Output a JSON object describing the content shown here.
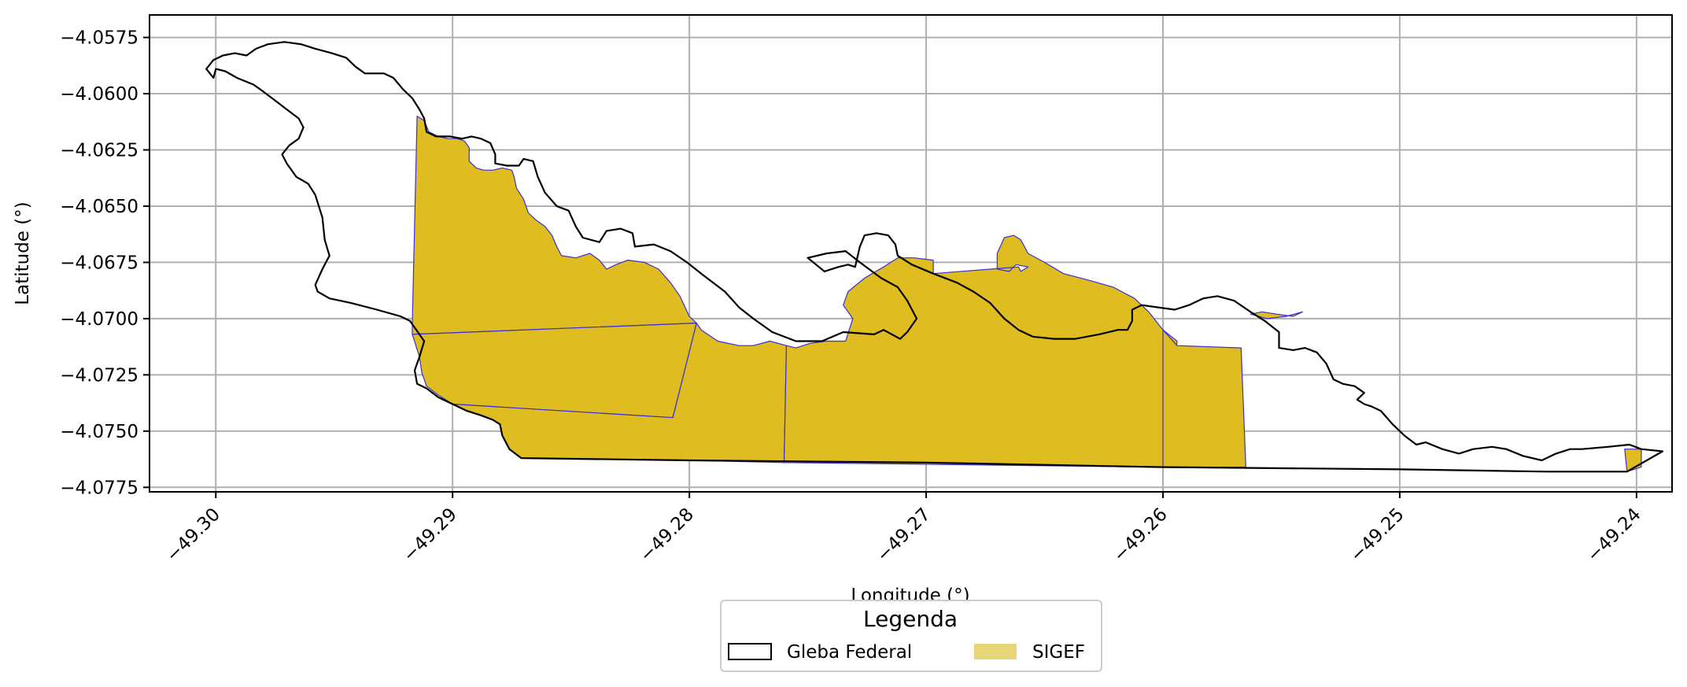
{
  "chart_data": {
    "type": "map",
    "xlabel": "Longitude (°)",
    "ylabel": "Latitude (°)",
    "xlim": [
      -49.3028,
      -49.2385
    ],
    "ylim": [
      -4.0777,
      -4.0565
    ],
    "xticks": [
      -49.3,
      -49.29,
      -49.28,
      -49.27,
      -49.26,
      -49.25,
      -49.24
    ],
    "xtick_labels": [
      "−49.30",
      "−49.29",
      "−49.28",
      "−49.27",
      "−49.26",
      "−49.25",
      "−49.24"
    ],
    "yticks": [
      -4.0575,
      -4.06,
      -4.0625,
      -4.065,
      -4.0675,
      -4.07,
      -4.0725,
      -4.075,
      -4.0775
    ],
    "ytick_labels": [
      "−4.0575",
      "−4.0600",
      "−4.0625",
      "−4.0650",
      "−4.0675",
      "−4.0700",
      "−4.0725",
      "−4.0750",
      "−4.0775"
    ],
    "grid": true,
    "legend": {
      "title": "Legenda",
      "placement": "bottom-center",
      "entries": [
        {
          "name": "Gleba Federal",
          "fill": "#ffffff",
          "edge": "#000000"
        },
        {
          "name": "SIGEF",
          "fill": "#ddb81f",
          "edge": "#4a3aa8"
        }
      ]
    },
    "colors": {
      "sigef_fill": "#dfbd21",
      "sigef_edge": "#3b2fd0",
      "gleba_edge": "#000000",
      "grid": "#b0b0b0"
    },
    "gleba_federal": [
      [
        -49.3004,
        -4.0589
      ],
      [
        -49.3001,
        -4.0585
      ],
      [
        -49.2997,
        -4.0583
      ],
      [
        -49.2992,
        -4.0582
      ],
      [
        -49.2987,
        -4.0583
      ],
      [
        -49.2983,
        -4.058
      ],
      [
        -49.2978,
        -4.0578
      ],
      [
        -49.2971,
        -4.0577
      ],
      [
        -49.2964,
        -4.0578
      ],
      [
        -49.2958,
        -4.058
      ],
      [
        -49.2951,
        -4.0582
      ],
      [
        -49.2945,
        -4.0584
      ],
      [
        -49.2941,
        -4.0588
      ],
      [
        -49.2937,
        -4.0591
      ],
      [
        -49.2929,
        -4.0591
      ],
      [
        -49.2925,
        -4.0593
      ],
      [
        -49.2921,
        -4.0598
      ],
      [
        -49.2917,
        -4.0602
      ],
      [
        -49.2914,
        -4.0607
      ],
      [
        -49.2912,
        -4.0611
      ],
      [
        -49.2911,
        -4.0617
      ],
      [
        -49.2907,
        -4.0619
      ],
      [
        -49.2901,
        -4.0619
      ],
      [
        -49.2896,
        -4.062
      ],
      [
        -49.2892,
        -4.0619
      ],
      [
        -49.2888,
        -4.062
      ],
      [
        -49.2884,
        -4.0622
      ],
      [
        -49.2882,
        -4.0627
      ],
      [
        -49.2882,
        -4.0631
      ],
      [
        -49.2877,
        -4.0632
      ],
      [
        -49.2872,
        -4.0632
      ],
      [
        -49.287,
        -4.0629
      ],
      [
        -49.2866,
        -4.063
      ],
      [
        -49.2864,
        -4.0637
      ],
      [
        -49.2861,
        -4.0644
      ],
      [
        -49.2856,
        -4.065
      ],
      [
        -49.2851,
        -4.0652
      ],
      [
        -49.2848,
        -4.0659
      ],
      [
        -49.2845,
        -4.0664
      ],
      [
        -49.2838,
        -4.0666
      ],
      [
        -49.2835,
        -4.0661
      ],
      [
        -49.2829,
        -4.066
      ],
      [
        -49.2824,
        -4.0662
      ],
      [
        -49.2823,
        -4.0668
      ],
      [
        -49.2815,
        -4.0667
      ],
      [
        -49.2808,
        -4.067
      ],
      [
        -49.2801,
        -4.0675
      ],
      [
        -49.2795,
        -4.068
      ],
      [
        -49.2785,
        -4.0688
      ],
      [
        -49.2779,
        -4.0695
      ],
      [
        -49.2773,
        -4.07
      ],
      [
        -49.2765,
        -4.0706
      ],
      [
        -49.2755,
        -4.071
      ],
      [
        -49.2744,
        -4.071
      ],
      [
        -49.2735,
        -4.0706
      ],
      [
        -49.2722,
        -4.0707
      ],
      [
        -49.2718,
        -4.0705
      ],
      [
        -49.2711,
        -4.0709
      ],
      [
        -49.2708,
        -4.0706
      ],
      [
        -49.2704,
        -4.07
      ],
      [
        -49.2708,
        -4.0692
      ],
      [
        -49.2712,
        -4.0686
      ],
      [
        -49.2719,
        -4.0682
      ],
      [
        -49.2728,
        -4.0675
      ],
      [
        -49.2734,
        -4.067
      ],
      [
        -49.2742,
        -4.0671
      ],
      [
        -49.275,
        -4.0673
      ],
      [
        -49.2743,
        -4.0679
      ],
      [
        -49.2737,
        -4.0677
      ],
      [
        -49.2733,
        -4.0676
      ],
      [
        -49.273,
        -4.0677
      ],
      [
        -49.2728,
        -4.0668
      ],
      [
        -49.2726,
        -4.0663
      ],
      [
        -49.2721,
        -4.0662
      ],
      [
        -49.2716,
        -4.0663
      ],
      [
        -49.2713,
        -4.0667
      ],
      [
        -49.2712,
        -4.0672
      ],
      [
        -49.2706,
        -4.0676
      ],
      [
        -49.2697,
        -4.068
      ],
      [
        -49.2687,
        -4.0684
      ],
      [
        -49.268,
        -4.0688
      ],
      [
        -49.2673,
        -4.0693
      ],
      [
        -49.2667,
        -4.07
      ],
      [
        -49.2661,
        -4.0705
      ],
      [
        -49.2655,
        -4.0708
      ],
      [
        -49.2646,
        -4.0709
      ],
      [
        -49.2637,
        -4.0709
      ],
      [
        -49.2627,
        -4.0707
      ],
      [
        -49.2619,
        -4.0705
      ],
      [
        -49.2615,
        -4.0705
      ],
      [
        -49.2613,
        -4.0701
      ],
      [
        -49.2613,
        -4.0696
      ],
      [
        -49.2609,
        -4.0694
      ],
      [
        -49.2602,
        -4.0695
      ],
      [
        -49.2595,
        -4.0696
      ],
      [
        -49.2589,
        -4.0694
      ],
      [
        -49.2583,
        -4.0691
      ],
      [
        -49.2577,
        -4.069
      ],
      [
        -49.257,
        -4.0692
      ],
      [
        -49.2563,
        -4.0697
      ],
      [
        -49.2557,
        -4.0701
      ],
      [
        -49.2551,
        -4.0706
      ],
      [
        -49.2551,
        -4.0713
      ],
      [
        -49.2545,
        -4.0714
      ],
      [
        -49.254,
        -4.0713
      ],
      [
        -49.2535,
        -4.0715
      ],
      [
        -49.2531,
        -4.072
      ],
      [
        -49.2528,
        -4.0727
      ],
      [
        -49.2524,
        -4.0729
      ],
      [
        -49.2519,
        -4.073
      ],
      [
        -49.2515,
        -4.0733
      ],
      [
        -49.2518,
        -4.0736
      ],
      [
        -49.2515,
        -4.0738
      ],
      [
        -49.2512,
        -4.0739
      ],
      [
        -49.2508,
        -4.0741
      ],
      [
        -49.2503,
        -4.0747
      ],
      [
        -49.2498,
        -4.0752
      ],
      [
        -49.2493,
        -4.0756
      ],
      [
        -49.2489,
        -4.0755
      ],
      [
        -49.2482,
        -4.0758
      ],
      [
        -49.2475,
        -4.076
      ],
      [
        -49.2469,
        -4.0758
      ],
      [
        -49.2461,
        -4.0757
      ],
      [
        -49.2455,
        -4.0758
      ],
      [
        -49.2448,
        -4.0761
      ],
      [
        -49.244,
        -4.0763
      ],
      [
        -49.2434,
        -4.076
      ],
      [
        -49.2428,
        -4.0758
      ],
      [
        -49.2423,
        -4.0758
      ],
      [
        -49.2412,
        -4.0757
      ],
      [
        -49.2403,
        -4.0756
      ],
      [
        -49.2398,
        -4.0758
      ],
      [
        -49.2389,
        -4.0759
      ],
      [
        -49.2404,
        -4.0768
      ],
      [
        -49.2438,
        -4.0768
      ],
      [
        -49.25,
        -4.0767
      ],
      [
        -49.26,
        -4.0766
      ],
      [
        -49.27,
        -4.0764
      ],
      [
        -49.28,
        -4.0763
      ],
      [
        -49.2871,
        -4.0762
      ],
      [
        -49.2876,
        -4.0758
      ],
      [
        -49.2879,
        -4.0752
      ],
      [
        -49.288,
        -4.0747
      ],
      [
        -49.2883,
        -4.0745
      ],
      [
        -49.2888,
        -4.0743
      ],
      [
        -49.2894,
        -4.0741
      ],
      [
        -49.29,
        -4.0738
      ],
      [
        -49.2906,
        -4.0735
      ],
      [
        -49.2911,
        -4.0731
      ],
      [
        -49.2915,
        -4.0729
      ],
      [
        -49.2916,
        -4.0723
      ],
      [
        -49.2914,
        -4.0717
      ],
      [
        -49.2912,
        -4.071
      ],
      [
        -49.2918,
        -4.0701
      ],
      [
        -49.2922,
        -4.0699
      ],
      [
        -49.2932,
        -4.0696
      ],
      [
        -49.2943,
        -4.0693
      ],
      [
        -49.2952,
        -4.0691
      ],
      [
        -49.2957,
        -4.0688
      ],
      [
        -49.2958,
        -4.0685
      ],
      [
        -49.2955,
        -4.0678
      ],
      [
        -49.2952,
        -4.0672
      ],
      [
        -49.2954,
        -4.0665
      ],
      [
        -49.2955,
        -4.0655
      ],
      [
        -49.2958,
        -4.0645
      ],
      [
        -49.2961,
        -4.064
      ],
      [
        -49.2966,
        -4.0637
      ],
      [
        -49.297,
        -4.0631
      ],
      [
        -49.2972,
        -4.0627
      ],
      [
        -49.2969,
        -4.0623
      ],
      [
        -49.2965,
        -4.062
      ],
      [
        -49.2963,
        -4.0615
      ],
      [
        -49.2965,
        -4.0611
      ],
      [
        -49.297,
        -4.0607
      ],
      [
        -49.2975,
        -4.0603
      ],
      [
        -49.298,
        -4.0599
      ],
      [
        -49.2984,
        -4.0596
      ],
      [
        -49.2991,
        -4.0593
      ],
      [
        -49.2996,
        -4.059
      ],
      [
        -49.3,
        -4.0589
      ],
      [
        -49.3001,
        -4.0593
      ],
      [
        -49.3004,
        -4.0589
      ]
    ],
    "sigef": [
      [
        [
          -49.2915,
          -4.061
        ],
        [
          -49.2912,
          -4.0612
        ],
        [
          -49.291,
          -4.0617
        ],
        [
          -49.2906,
          -4.0619
        ],
        [
          -49.2902,
          -4.062
        ],
        [
          -49.2898,
          -4.062
        ],
        [
          -49.2895,
          -4.0621
        ],
        [
          -49.2893,
          -4.0624
        ],
        [
          -49.2893,
          -4.063
        ],
        [
          -49.289,
          -4.0633
        ],
        [
          -49.2887,
          -4.0634
        ],
        [
          -49.2883,
          -4.0634
        ],
        [
          -49.2879,
          -4.0633
        ],
        [
          -49.2875,
          -4.0634
        ],
        [
          -49.2874,
          -4.0637
        ],
        [
          -49.2873,
          -4.0642
        ],
        [
          -49.287,
          -4.0647
        ],
        [
          -49.2868,
          -4.0653
        ],
        [
          -49.2865,
          -4.0656
        ],
        [
          -49.2861,
          -4.0659
        ],
        [
          -49.2858,
          -4.0663
        ],
        [
          -49.2856,
          -4.0668
        ],
        [
          -49.2854,
          -4.0672
        ],
        [
          -49.2848,
          -4.0673
        ],
        [
          -49.2842,
          -4.0671
        ],
        [
          -49.2838,
          -4.0674
        ],
        [
          -49.2835,
          -4.0678
        ],
        [
          -49.2831,
          -4.0676
        ],
        [
          -49.2826,
          -4.0674
        ],
        [
          -49.2819,
          -4.0675
        ],
        [
          -49.2813,
          -4.0678
        ],
        [
          -49.2808,
          -4.0684
        ],
        [
          -49.2804,
          -4.069
        ],
        [
          -49.28,
          -4.0699
        ],
        [
          -49.2797,
          -4.0702
        ],
        [
          -49.2917,
          -4.0707
        ],
        [
          -49.2917,
          -4.0702
        ],
        [
          -49.2915,
          -4.061
        ]
      ],
      [
        [
          -49.2917,
          -4.0707
        ],
        [
          -49.2797,
          -4.0702
        ],
        [
          -49.2807,
          -4.0744
        ],
        [
          -49.29,
          -4.0738
        ],
        [
          -49.2906,
          -4.0734
        ],
        [
          -49.2911,
          -4.073
        ],
        [
          -49.2913,
          -4.0724
        ],
        [
          -49.2914,
          -4.0717
        ],
        [
          -49.2917,
          -4.0707
        ]
      ],
      [
        [
          -49.2807,
          -4.0744
        ],
        [
          -49.29,
          -4.0738
        ],
        [
          -49.2894,
          -4.0741
        ],
        [
          -49.2888,
          -4.0743
        ],
        [
          -49.2883,
          -4.0745
        ],
        [
          -49.288,
          -4.0747
        ],
        [
          -49.2879,
          -4.0752
        ],
        [
          -49.2876,
          -4.0758
        ],
        [
          -49.2871,
          -4.0762
        ],
        [
          -49.28,
          -4.0763
        ],
        [
          -49.28,
          -4.0763
        ],
        [
          -49.276,
          -4.0764
        ],
        [
          -49.2759,
          -4.0712
        ],
        [
          -49.2766,
          -4.071
        ],
        [
          -49.2773,
          -4.0712
        ],
        [
          -49.2779,
          -4.0712
        ],
        [
          -49.2788,
          -4.071
        ],
        [
          -49.2795,
          -4.0705
        ],
        [
          -49.2797,
          -4.0702
        ],
        [
          -49.2807,
          -4.0744
        ]
      ],
      [
        [
          -49.2759,
          -4.0712
        ],
        [
          -49.276,
          -4.0764
        ],
        [
          -49.26,
          -4.0766
        ],
        [
          -49.2594,
          -4.071
        ],
        [
          -49.26,
          -4.0705
        ],
        [
          -49.2606,
          -4.0697
        ],
        [
          -49.2612,
          -4.0691
        ],
        [
          -49.2621,
          -4.0686
        ],
        [
          -49.2631,
          -4.0683
        ],
        [
          -49.2642,
          -4.068
        ],
        [
          -49.265,
          -4.0675
        ],
        [
          -49.2657,
          -4.0671
        ],
        [
          -49.266,
          -4.0665
        ],
        [
          -49.2663,
          -4.0663
        ],
        [
          -49.2667,
          -4.0664
        ],
        [
          -49.267,
          -4.0671
        ],
        [
          -49.267,
          -4.0678
        ],
        [
          -49.2665,
          -4.0679
        ],
        [
          -49.2662,
          -4.0676
        ],
        [
          -49.2657,
          -4.0677
        ],
        [
          -49.266,
          -4.0679
        ],
        [
          -49.2661,
          -4.0677
        ],
        [
          -49.2697,
          -4.068
        ],
        [
          -49.2697,
          -4.0674
        ],
        [
          -49.2705,
          -4.0673
        ],
        [
          -49.2712,
          -4.0673
        ],
        [
          -49.2718,
          -4.0677
        ],
        [
          -49.2726,
          -4.0682
        ],
        [
          -49.2733,
          -4.0688
        ],
        [
          -49.2735,
          -4.0694
        ],
        [
          -49.2731,
          -4.07
        ],
        [
          -49.2734,
          -4.071
        ],
        [
          -49.2742,
          -4.071
        ],
        [
          -49.2749,
          -4.0711
        ],
        [
          -49.2755,
          -4.0713
        ],
        [
          -49.2759,
          -4.0712
        ]
      ],
      [
        [
          -49.26,
          -4.0705
        ],
        [
          -49.26,
          -4.0766
        ],
        [
          -49.2565,
          -4.0766
        ],
        [
          -49.2567,
          -4.0713
        ],
        [
          -49.2594,
          -4.0712
        ],
        [
          -49.26,
          -4.0705
        ]
      ],
      [
        [
          -49.2563,
          -4.0698
        ],
        [
          -49.2558,
          -4.0697
        ],
        [
          -49.2552,
          -4.0698
        ],
        [
          -49.2545,
          -4.0699
        ],
        [
          -49.2541,
          -4.0697
        ],
        [
          -49.2548,
          -4.0699
        ],
        [
          -49.2556,
          -4.07
        ],
        [
          -49.2563,
          -4.0698
        ]
      ],
      [
        [
          -49.2398,
          -4.0758
        ],
        [
          -49.2405,
          -4.0758
        ],
        [
          -49.2404,
          -4.0768
        ],
        [
          -49.2398,
          -4.0766
        ],
        [
          -49.2398,
          -4.0758
        ]
      ]
    ]
  }
}
